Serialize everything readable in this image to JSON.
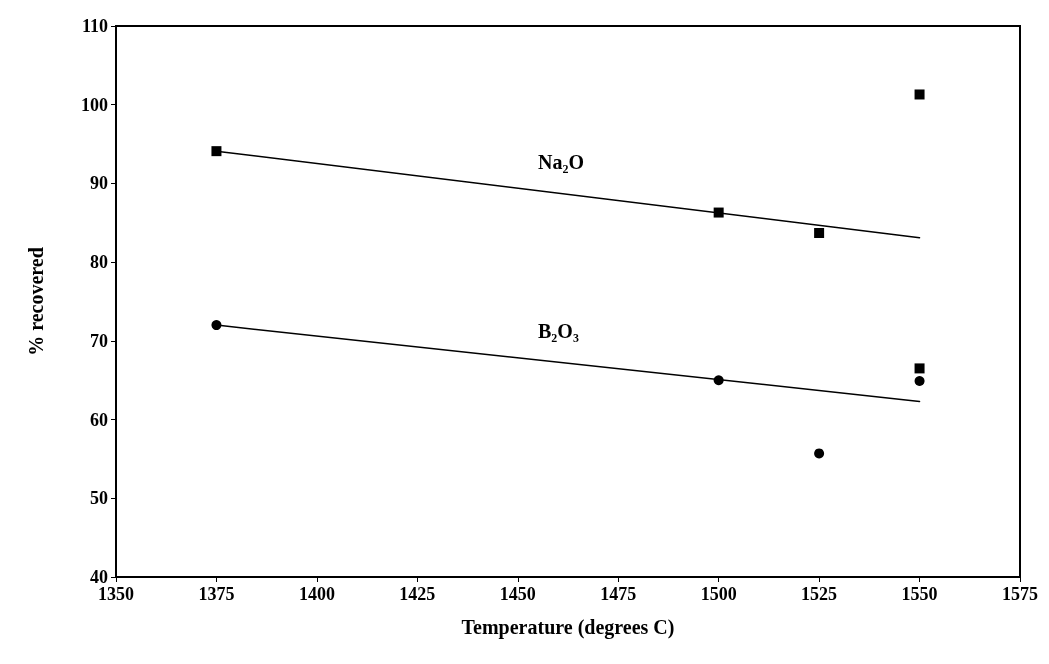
{
  "chart_data": {
    "type": "scatter",
    "xlabel": "Temperature (degrees C)",
    "ylabel": "% recovered",
    "xlim": [
      1350,
      1575
    ],
    "xticks": [
      1350,
      1375,
      1400,
      1425,
      1450,
      1475,
      1500,
      1525,
      1550,
      1575
    ],
    "ylim": [
      40,
      110
    ],
    "yticks": [
      40,
      50,
      60,
      70,
      80,
      90,
      100,
      110
    ],
    "grid": false,
    "legend": false,
    "series": [
      {
        "marker": "square",
        "color": "#000000",
        "x": [
          1375,
          1500,
          1525,
          1550,
          1550
        ],
        "values": [
          94.1,
          86.3,
          83.7,
          101.3,
          66.5
        ]
      },
      {
        "marker": "circle",
        "color": "#000000",
        "x": [
          1375,
          1500,
          1525,
          1550
        ],
        "values": [
          72.0,
          65.0,
          55.7,
          64.9
        ]
      },
      {
        "type": "line",
        "name": "Na₂O",
        "marker": "none",
        "line_style": "solid",
        "color": "#000000",
        "x": [
          1375,
          1550
        ],
        "values": [
          94.1,
          83.1
        ]
      },
      {
        "type": "line",
        "name": "B₂O₃",
        "marker": "none",
        "line_style": "solid",
        "color": "#000000",
        "x": [
          1375,
          1550
        ],
        "values": [
          72.0,
          62.3
        ]
      }
    ]
  }
}
